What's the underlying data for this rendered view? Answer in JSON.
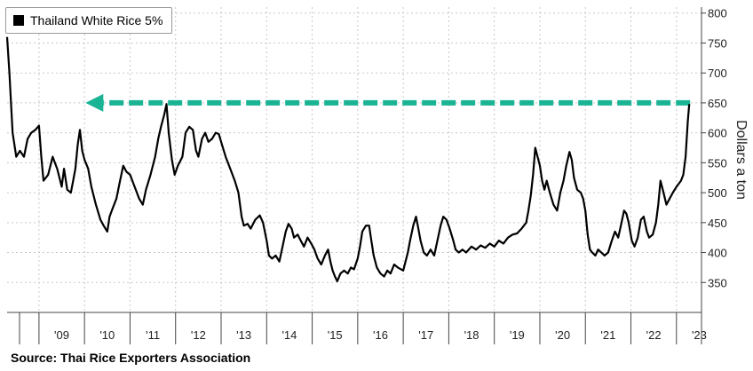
{
  "chart_data": {
    "type": "line",
    "legend": {
      "label": "Thailand White Rice 5%",
      "color": "#000000",
      "placement": "top-left"
    },
    "ylabel": "Dollars a ton",
    "source": "Source: Thai Rice Exporters Association",
    "ylim": [
      300,
      810
    ],
    "y_ticks": [
      350,
      400,
      450,
      500,
      550,
      600,
      650,
      700,
      750,
      800
    ],
    "y_axis_position": "right",
    "xlim": [
      2008.3,
      2023.55
    ],
    "x_ticks": [
      {
        "x": 2009.5,
        "label": "'09"
      },
      {
        "x": 2010.5,
        "label": "'10"
      },
      {
        "x": 2011.5,
        "label": "'11"
      },
      {
        "x": 2012.5,
        "label": "'12"
      },
      {
        "x": 2013.5,
        "label": "'13"
      },
      {
        "x": 2014.5,
        "label": "'14"
      },
      {
        "x": 2015.5,
        "label": "'15"
      },
      {
        "x": 2016.5,
        "label": "'16"
      },
      {
        "x": 2017.5,
        "label": "'17"
      },
      {
        "x": 2018.5,
        "label": "'18"
      },
      {
        "x": 2019.5,
        "label": "'19"
      },
      {
        "x": 2020.5,
        "label": "'20"
      },
      {
        "x": 2021.5,
        "label": "'21"
      },
      {
        "x": 2022.5,
        "label": "'22"
      },
      {
        "x": 2023.5,
        "label": "'23"
      }
    ],
    "grid": true,
    "annotation": {
      "type": "dashed-arrow",
      "y": 650,
      "x_from": 2023.3,
      "x_to": 2010.1,
      "color": "#1ab394"
    },
    "series": [
      {
        "line_color": "#000000",
        "points": [
          [
            2008.3,
            760
          ],
          [
            2008.35,
            700
          ],
          [
            2008.42,
            600
          ],
          [
            2008.5,
            560
          ],
          [
            2008.58,
            570
          ],
          [
            2008.67,
            560
          ],
          [
            2008.75,
            590
          ],
          [
            2008.83,
            600
          ],
          [
            2008.92,
            605
          ],
          [
            2009.0,
            612
          ],
          [
            2009.05,
            560
          ],
          [
            2009.1,
            520
          ],
          [
            2009.2,
            530
          ],
          [
            2009.3,
            560
          ],
          [
            2009.4,
            540
          ],
          [
            2009.5,
            510
          ],
          [
            2009.55,
            540
          ],
          [
            2009.62,
            505
          ],
          [
            2009.7,
            500
          ],
          [
            2009.75,
            520
          ],
          [
            2009.8,
            540
          ],
          [
            2009.85,
            580
          ],
          [
            2009.9,
            605
          ],
          [
            2009.95,
            570
          ],
          [
            2010.0,
            555
          ],
          [
            2010.08,
            540
          ],
          [
            2010.15,
            510
          ],
          [
            2010.25,
            480
          ],
          [
            2010.35,
            455
          ],
          [
            2010.42,
            445
          ],
          [
            2010.5,
            435
          ],
          [
            2010.55,
            460
          ],
          [
            2010.6,
            470
          ],
          [
            2010.7,
            490
          ],
          [
            2010.78,
            520
          ],
          [
            2010.85,
            545
          ],
          [
            2010.92,
            535
          ],
          [
            2011.0,
            530
          ],
          [
            2011.1,
            510
          ],
          [
            2011.2,
            490
          ],
          [
            2011.28,
            480
          ],
          [
            2011.35,
            505
          ],
          [
            2011.45,
            530
          ],
          [
            2011.55,
            560
          ],
          [
            2011.62,
            590
          ],
          [
            2011.68,
            610
          ],
          [
            2011.75,
            630
          ],
          [
            2011.8,
            648
          ],
          [
            2011.85,
            600
          ],
          [
            2011.92,
            555
          ],
          [
            2011.98,
            530
          ],
          [
            2012.05,
            545
          ],
          [
            2012.15,
            560
          ],
          [
            2012.22,
            600
          ],
          [
            2012.3,
            610
          ],
          [
            2012.38,
            605
          ],
          [
            2012.45,
            570
          ],
          [
            2012.5,
            560
          ],
          [
            2012.58,
            590
          ],
          [
            2012.65,
            600
          ],
          [
            2012.72,
            585
          ],
          [
            2012.8,
            590
          ],
          [
            2012.88,
            600
          ],
          [
            2012.95,
            598
          ],
          [
            2013.02,
            580
          ],
          [
            2013.1,
            560
          ],
          [
            2013.2,
            540
          ],
          [
            2013.3,
            520
          ],
          [
            2013.38,
            500
          ],
          [
            2013.45,
            460
          ],
          [
            2013.5,
            445
          ],
          [
            2013.58,
            448
          ],
          [
            2013.65,
            440
          ],
          [
            2013.75,
            455
          ],
          [
            2013.85,
            462
          ],
          [
            2013.92,
            450
          ],
          [
            2014.0,
            420
          ],
          [
            2014.05,
            395
          ],
          [
            2014.12,
            390
          ],
          [
            2014.2,
            395
          ],
          [
            2014.28,
            385
          ],
          [
            2014.35,
            410
          ],
          [
            2014.42,
            435
          ],
          [
            2014.48,
            448
          ],
          [
            2014.55,
            440
          ],
          [
            2014.6,
            425
          ],
          [
            2014.68,
            430
          ],
          [
            2014.75,
            420
          ],
          [
            2014.82,
            410
          ],
          [
            2014.9,
            425
          ],
          [
            2014.98,
            415
          ],
          [
            2015.05,
            405
          ],
          [
            2015.12,
            390
          ],
          [
            2015.2,
            380
          ],
          [
            2015.28,
            395
          ],
          [
            2015.35,
            405
          ],
          [
            2015.4,
            385
          ],
          [
            2015.45,
            370
          ],
          [
            2015.5,
            360
          ],
          [
            2015.55,
            352
          ],
          [
            2015.62,
            365
          ],
          [
            2015.7,
            370
          ],
          [
            2015.78,
            365
          ],
          [
            2015.85,
            375
          ],
          [
            2015.92,
            372
          ],
          [
            2016.0,
            390
          ],
          [
            2016.05,
            410
          ],
          [
            2016.1,
            435
          ],
          [
            2016.18,
            445
          ],
          [
            2016.25,
            445
          ],
          [
            2016.3,
            420
          ],
          [
            2016.35,
            395
          ],
          [
            2016.42,
            375
          ],
          [
            2016.5,
            365
          ],
          [
            2016.58,
            360
          ],
          [
            2016.65,
            370
          ],
          [
            2016.72,
            365
          ],
          [
            2016.8,
            380
          ],
          [
            2016.88,
            375
          ],
          [
            2017.0,
            370
          ],
          [
            2017.05,
            385
          ],
          [
            2017.1,
            400
          ],
          [
            2017.15,
            420
          ],
          [
            2017.22,
            445
          ],
          [
            2017.28,
            460
          ],
          [
            2017.32,
            445
          ],
          [
            2017.38,
            420
          ],
          [
            2017.45,
            400
          ],
          [
            2017.52,
            395
          ],
          [
            2017.6,
            405
          ],
          [
            2017.68,
            395
          ],
          [
            2017.75,
            420
          ],
          [
            2017.82,
            445
          ],
          [
            2017.88,
            460
          ],
          [
            2017.95,
            455
          ],
          [
            2018.02,
            440
          ],
          [
            2018.1,
            420
          ],
          [
            2018.15,
            405
          ],
          [
            2018.22,
            400
          ],
          [
            2018.3,
            405
          ],
          [
            2018.38,
            400
          ],
          [
            2018.5,
            410
          ],
          [
            2018.6,
            405
          ],
          [
            2018.7,
            412
          ],
          [
            2018.8,
            408
          ],
          [
            2018.9,
            415
          ],
          [
            2019.0,
            410
          ],
          [
            2019.1,
            420
          ],
          [
            2019.2,
            415
          ],
          [
            2019.3,
            425
          ],
          [
            2019.4,
            430
          ],
          [
            2019.5,
            432
          ],
          [
            2019.6,
            440
          ],
          [
            2019.7,
            450
          ],
          [
            2019.75,
            470
          ],
          [
            2019.8,
            495
          ],
          [
            2019.85,
            530
          ],
          [
            2019.9,
            575
          ],
          [
            2019.95,
            560
          ],
          [
            2020.0,
            545
          ],
          [
            2020.05,
            520
          ],
          [
            2020.1,
            505
          ],
          [
            2020.15,
            520
          ],
          [
            2020.22,
            500
          ],
          [
            2020.3,
            480
          ],
          [
            2020.38,
            470
          ],
          [
            2020.45,
            500
          ],
          [
            2020.52,
            520
          ],
          [
            2020.58,
            545
          ],
          [
            2020.65,
            568
          ],
          [
            2020.7,
            555
          ],
          [
            2020.75,
            525
          ],
          [
            2020.82,
            505
          ],
          [
            2020.9,
            500
          ],
          [
            2020.95,
            490
          ],
          [
            2021.0,
            470
          ],
          [
            2021.05,
            430
          ],
          [
            2021.1,
            405
          ],
          [
            2021.15,
            400
          ],
          [
            2021.22,
            395
          ],
          [
            2021.28,
            405
          ],
          [
            2021.35,
            400
          ],
          [
            2021.42,
            395
          ],
          [
            2021.5,
            400
          ],
          [
            2021.58,
            420
          ],
          [
            2021.65,
            435
          ],
          [
            2021.72,
            425
          ],
          [
            2021.78,
            445
          ],
          [
            2021.85,
            470
          ],
          [
            2021.9,
            465
          ],
          [
            2021.95,
            450
          ],
          [
            2022.02,
            420
          ],
          [
            2022.08,
            410
          ],
          [
            2022.15,
            425
          ],
          [
            2022.22,
            455
          ],
          [
            2022.28,
            460
          ],
          [
            2022.35,
            435
          ],
          [
            2022.4,
            425
          ],
          [
            2022.48,
            430
          ],
          [
            2022.55,
            450
          ],
          [
            2022.6,
            480
          ],
          [
            2022.65,
            520
          ],
          [
            2022.7,
            505
          ],
          [
            2022.78,
            480
          ],
          [
            2022.85,
            490
          ],
          [
            2022.92,
            500
          ],
          [
            2023.0,
            510
          ],
          [
            2023.05,
            515
          ],
          [
            2023.1,
            520
          ],
          [
            2023.15,
            530
          ],
          [
            2023.2,
            560
          ],
          [
            2023.25,
            620
          ],
          [
            2023.28,
            648
          ]
        ]
      }
    ]
  }
}
